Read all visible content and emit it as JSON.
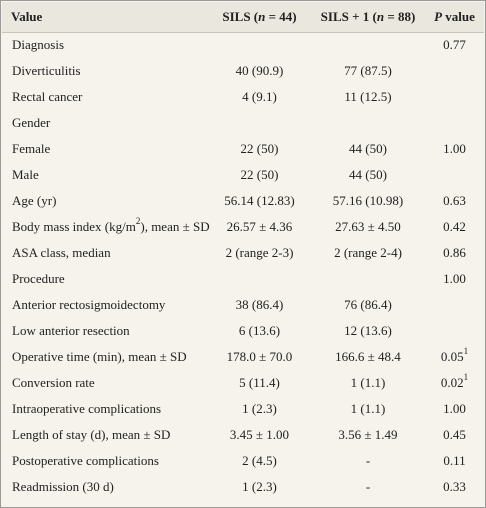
{
  "table": {
    "headers": {
      "value": "Value",
      "sils_prefix": "SILS (",
      "sils_n": "n",
      "sils_suffix": " = 44)",
      "sils1_prefix": "SILS + 1 (",
      "sils1_n": "n",
      "sils1_suffix": " = 88)",
      "p_letter": "P",
      "p_suffix": " value"
    },
    "rows": [
      {
        "label": "Diagnosis",
        "sils": "",
        "sils1": "",
        "p": "0.77",
        "p_sup": ""
      },
      {
        "label": "Diverticulitis",
        "sils": "40 (90.9)",
        "sils1": "77 (87.5)",
        "p": "",
        "p_sup": ""
      },
      {
        "label": "Rectal cancer",
        "sils": "4 (9.1)",
        "sils1": "11 (12.5)",
        "p": "",
        "p_sup": ""
      },
      {
        "label": "Gender",
        "sils": "",
        "sils1": "",
        "p": "",
        "p_sup": ""
      },
      {
        "label": "Female",
        "sils": "22 (50)",
        "sils1": "44 (50)",
        "p": "1.00",
        "p_sup": ""
      },
      {
        "label": "Male",
        "sils": "22 (50)",
        "sils1": "44 (50)",
        "p": "",
        "p_sup": ""
      },
      {
        "label": "Age (yr)",
        "sils": "56.14 (12.83)",
        "sils1": "57.16 (10.98)",
        "p": "0.63",
        "p_sup": ""
      },
      {
        "label": "Body mass index (kg/m",
        "label_sup": "2",
        "label_after": "), mean ± SD",
        "sils": "26.57 ± 4.36",
        "sils1": "27.63 ± 4.50",
        "p": "0.42",
        "p_sup": ""
      },
      {
        "label": "ASA class, median",
        "sils": "2 (range 2-3)",
        "sils1": "2 (range 2-4)",
        "p": "0.86",
        "p_sup": ""
      },
      {
        "label": "Procedure",
        "sils": "",
        "sils1": "",
        "p": "1.00",
        "p_sup": ""
      },
      {
        "label": "Anterior rectosigmoidectomy",
        "sils": "38 (86.4)",
        "sils1": "76 (86.4)",
        "p": "",
        "p_sup": ""
      },
      {
        "label": "Low anterior resection",
        "sils": "6 (13.6)",
        "sils1": "12 (13.6)",
        "p": "",
        "p_sup": ""
      },
      {
        "label": "Operative time (min), mean ± SD",
        "sils": "178.0 ± 70.0",
        "sils1": "166.6 ± 48.4",
        "p": "0.05",
        "p_sup": "1"
      },
      {
        "label": "Conversion rate",
        "sils": "5 (11.4)",
        "sils1": "1 (1.1)",
        "p": "0.02",
        "p_sup": "1"
      },
      {
        "label": "Intraoperative complications",
        "sils": "1 (2.3)",
        "sils1": "1 (1.1)",
        "p": "1.00",
        "p_sup": ""
      },
      {
        "label": "Length of stay (d), mean ± SD",
        "sils": "3.45 ± 1.00",
        "sils1": "3.56 ± 1.49",
        "p": "0.45",
        "p_sup": ""
      },
      {
        "label": "Postoperative complications",
        "sils": "2 (4.5)",
        "sils1": "-",
        "p": "0.11",
        "p_sup": ""
      },
      {
        "label": "Readmission (30 d)",
        "sils": "1 (2.3)",
        "sils1": "-",
        "p": "0.33",
        "p_sup": ""
      }
    ]
  }
}
